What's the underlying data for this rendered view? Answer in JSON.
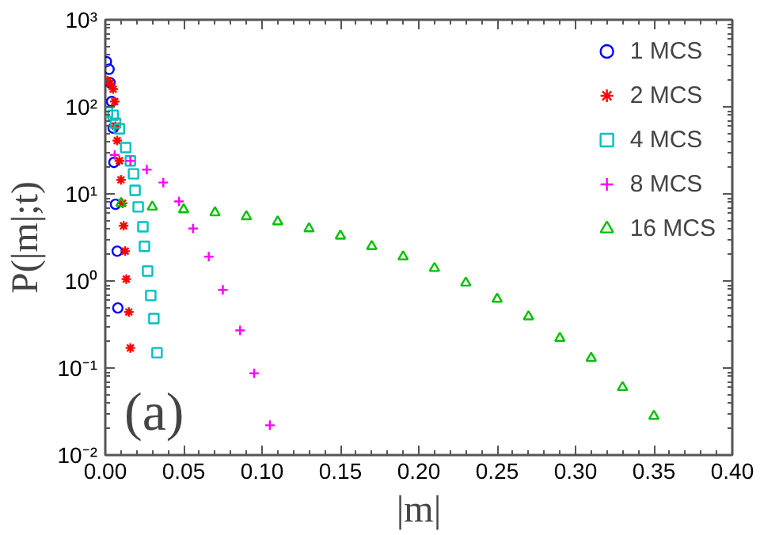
{
  "chart_data": {
    "type": "scatter",
    "xlabel": "|m|",
    "ylabel": "P(|m|;t)",
    "log": "y",
    "xlim": [
      0,
      0.4
    ],
    "xticks": [
      {
        "value": 0,
        "label": "0.00"
      },
      0.05,
      {
        "value": 0.1,
        "label": "0.10"
      },
      0.15,
      {
        "value": 0.2,
        "label": "0.20"
      },
      0.25,
      {
        "value": 0.3,
        "label": "0.30"
      },
      0.35,
      {
        "value": 0.4,
        "label": "0.40"
      }
    ],
    "ylim": [
      0.01,
      1000
    ],
    "yticks": [
      {
        "value": 0.01,
        "label": "10⁻²"
      },
      {
        "value": 0.1,
        "label": "10⁻¹"
      },
      {
        "value": 1,
        "label": "10⁰"
      },
      {
        "value": 10,
        "label": "10¹"
      },
      {
        "value": 100,
        "label": "10²"
      },
      {
        "value": 1000,
        "label": "10³"
      }
    ],
    "grid": false,
    "legend": "top right",
    "annotations": [
      "(a)"
    ],
    "series": [
      {
        "name": "1 MCS",
        "color": "#0000ff",
        "marker": "circle",
        "x": [
          0.0007,
          0.0024,
          0.003,
          0.004,
          0.005,
          0.0055,
          0.0065,
          0.0076,
          0.008
        ],
        "values": [
          330,
          270,
          190,
          115,
          57,
          23,
          7.6,
          2.2,
          0.49
        ]
      },
      {
        "name": "2 MCS",
        "color": "#ff0000",
        "x": [
          0.0014,
          0.003,
          0.005,
          0.006,
          0.0065,
          0.0076,
          0.009,
          0.01,
          0.011,
          0.0117,
          0.0127,
          0.0134,
          0.015,
          0.016
        ],
        "values": [
          200,
          185,
          160,
          115,
          60,
          41,
          24,
          14.5,
          7.8,
          4.3,
          2.2,
          1.05,
          0.44,
          0.17
        ]
      },
      {
        "name": "4 MCS",
        "color": "#00c0c0",
        "marker": "square",
        "x": [
          0.0014,
          0.005,
          0.0065,
          0.009,
          0.013,
          0.016,
          0.018,
          0.019,
          0.021,
          0.024,
          0.025,
          0.027,
          0.029,
          0.031,
          0.033
        ],
        "values": [
          87,
          80,
          65,
          56,
          34,
          24,
          17,
          11,
          7.1,
          4.2,
          2.5,
          1.3,
          0.68,
          0.37,
          0.15
        ]
      },
      {
        "name": "8 MCS",
        "color": "#ff00ff",
        "marker": "cross",
        "x": [
          0.006,
          0.016,
          0.0265,
          0.037,
          0.047,
          0.056,
          0.066,
          0.075,
          0.086,
          0.095,
          0.105
        ],
        "values": [
          28,
          24,
          19,
          13.5,
          8.2,
          4.0,
          1.9,
          0.79,
          0.27,
          0.087,
          0.022
        ]
      },
      {
        "name": "16 MCS",
        "color": "#00c000",
        "marker": "triangle",
        "x": [
          0.01,
          0.03,
          0.05,
          0.07,
          0.09,
          0.11,
          0.13,
          0.15,
          0.17,
          0.19,
          0.21,
          0.23,
          0.25,
          0.27,
          0.29,
          0.31,
          0.33,
          0.35
        ],
        "values": [
          7.8,
          7.1,
          6.6,
          6.1,
          5.5,
          4.8,
          4.0,
          3.3,
          2.5,
          1.9,
          1.4,
          0.95,
          0.62,
          0.39,
          0.22,
          0.13,
          0.06,
          0.028
        ]
      }
    ]
  }
}
